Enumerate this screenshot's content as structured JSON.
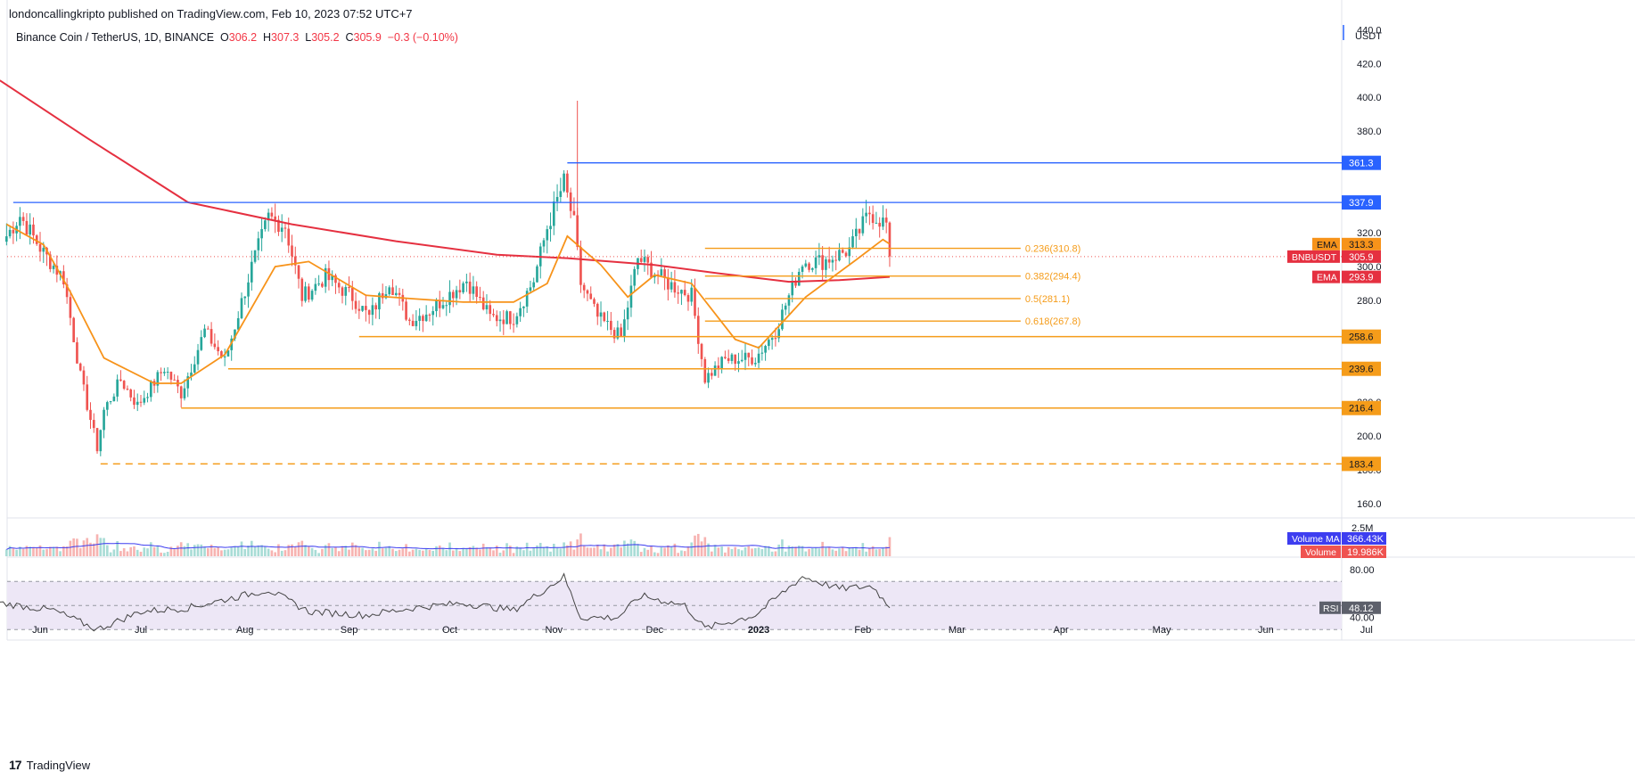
{
  "header": {
    "publish_line": "londoncallingkripto published on TradingView.com, Feb 10, 2023 07:52 UTC+7",
    "symbol": "Binance Coin / TetherUS, 1D, BINANCE",
    "o_label": "O",
    "o_value": "306.2",
    "h_label": "H",
    "h_value": "307.3",
    "l_label": "L",
    "l_value": "305.2",
    "c_label": "C",
    "c_value": "305.9",
    "change": "−0.3 (−0.10%)"
  },
  "footer": {
    "brand": "TradingView",
    "logo_glyph": "17"
  },
  "colors": {
    "up": "#26a69a",
    "down": "#ef5350",
    "ema_short": "#f7931a",
    "ema_long": "#e53040",
    "fib": "#f59c1a",
    "support": "#f59c1a",
    "resistance": "#2962ff",
    "volume_ma": "#3d3df0",
    "rsi": "#444444",
    "rsi_band": "#ede7f6",
    "grid_text": "#131722"
  },
  "chart_data": {
    "type": "candlestick",
    "symbol": "BNBUSDT",
    "currency": "USDT",
    "price_axis": {
      "ylim": [
        152,
        447
      ],
      "ticks": [
        "160.0",
        "180.0",
        "200.0",
        "220.0",
        "240.0",
        "260.0",
        "280.0",
        "300.0",
        "320.0",
        "340.0",
        "360.0",
        "380.0",
        "400.0",
        "420.0",
        "440.0"
      ]
    },
    "time_axis": {
      "labels": [
        "Jun",
        "Jul",
        "Aug",
        "Sep",
        "Oct",
        "Nov",
        "Dec",
        "2023",
        "Feb",
        "Mar",
        "Apr",
        "May",
        "Jun",
        "Jul"
      ]
    },
    "price_series_anchors": [
      {
        "date": "2022-05-22",
        "price": 318
      },
      {
        "date": "2022-05-26",
        "price": 330
      },
      {
        "date": "2022-06-02",
        "price": 308
      },
      {
        "date": "2022-06-08",
        "price": 293
      },
      {
        "date": "2022-06-13",
        "price": 235
      },
      {
        "date": "2022-06-18",
        "price": 193
      },
      {
        "date": "2022-06-20",
        "price": 215
      },
      {
        "date": "2022-06-25",
        "price": 233
      },
      {
        "date": "2022-06-30",
        "price": 218
      },
      {
        "date": "2022-07-08",
        "price": 240
      },
      {
        "date": "2022-07-13",
        "price": 225
      },
      {
        "date": "2022-07-20",
        "price": 262
      },
      {
        "date": "2022-07-26",
        "price": 244
      },
      {
        "date": "2022-08-03",
        "price": 300
      },
      {
        "date": "2022-08-08",
        "price": 329
      },
      {
        "date": "2022-08-13",
        "price": 324
      },
      {
        "date": "2022-08-18",
        "price": 282
      },
      {
        "date": "2022-08-25",
        "price": 294
      },
      {
        "date": "2022-09-02",
        "price": 282
      },
      {
        "date": "2022-09-07",
        "price": 270
      },
      {
        "date": "2022-09-13",
        "price": 292
      },
      {
        "date": "2022-09-19",
        "price": 268
      },
      {
        "date": "2022-09-25",
        "price": 274
      },
      {
        "date": "2022-10-06",
        "price": 292
      },
      {
        "date": "2022-10-13",
        "price": 270
      },
      {
        "date": "2022-10-20",
        "price": 270
      },
      {
        "date": "2022-10-26",
        "price": 292
      },
      {
        "date": "2022-10-30",
        "price": 323
      },
      {
        "date": "2022-11-04",
        "price": 350
      },
      {
        "date": "2022-11-07",
        "price": 325
      },
      {
        "date": "2022-11-09",
        "price": 290
      },
      {
        "date": "2022-11-14",
        "price": 270
      },
      {
        "date": "2022-11-21",
        "price": 258
      },
      {
        "date": "2022-11-26",
        "price": 305
      },
      {
        "date": "2022-12-05",
        "price": 290
      },
      {
        "date": "2022-12-12",
        "price": 283
      },
      {
        "date": "2022-12-16",
        "price": 234
      },
      {
        "date": "2022-12-22",
        "price": 245
      },
      {
        "date": "2022-12-31",
        "price": 246
      },
      {
        "date": "2023-01-06",
        "price": 262
      },
      {
        "date": "2023-01-14",
        "price": 303
      },
      {
        "date": "2023-01-20",
        "price": 303
      },
      {
        "date": "2023-01-28",
        "price": 310
      },
      {
        "date": "2023-02-03",
        "price": 332
      },
      {
        "date": "2023-02-08",
        "price": 325
      },
      {
        "date": "2023-02-09",
        "price": 306
      }
    ],
    "ema_short_anchors": [
      {
        "date": "2022-05-22",
        "value": 325
      },
      {
        "date": "2022-06-02",
        "value": 313
      },
      {
        "date": "2022-06-10",
        "value": 285
      },
      {
        "date": "2022-06-20",
        "value": 246
      },
      {
        "date": "2022-07-05",
        "value": 231
      },
      {
        "date": "2022-07-13",
        "value": 231
      },
      {
        "date": "2022-07-26",
        "value": 248
      },
      {
        "date": "2022-08-10",
        "value": 300
      },
      {
        "date": "2022-08-20",
        "value": 303
      },
      {
        "date": "2022-09-06",
        "value": 283
      },
      {
        "date": "2022-09-20",
        "value": 281
      },
      {
        "date": "2022-10-05",
        "value": 279
      },
      {
        "date": "2022-10-20",
        "value": 279
      },
      {
        "date": "2022-10-30",
        "value": 290
      },
      {
        "date": "2022-11-05",
        "value": 318
      },
      {
        "date": "2022-11-15",
        "value": 301
      },
      {
        "date": "2022-11-23",
        "value": 282
      },
      {
        "date": "2022-12-01",
        "value": 295
      },
      {
        "date": "2022-12-12",
        "value": 290
      },
      {
        "date": "2022-12-25",
        "value": 257
      },
      {
        "date": "2023-01-01",
        "value": 252
      },
      {
        "date": "2023-01-15",
        "value": 282
      },
      {
        "date": "2023-01-30",
        "value": 304
      },
      {
        "date": "2023-02-07",
        "value": 316
      },
      {
        "date": "2023-02-09",
        "value": 313.3
      }
    ],
    "ema_long_anchors": [
      {
        "date": "2022-05-20",
        "value": 410
      },
      {
        "date": "2022-06-15",
        "value": 376
      },
      {
        "date": "2022-07-15",
        "value": 338
      },
      {
        "date": "2022-08-15",
        "value": 325
      },
      {
        "date": "2022-09-15",
        "value": 315
      },
      {
        "date": "2022-10-15",
        "value": 307
      },
      {
        "date": "2022-11-05",
        "value": 305
      },
      {
        "date": "2022-12-01",
        "value": 301
      },
      {
        "date": "2022-12-20",
        "value": 296
      },
      {
        "date": "2023-01-10",
        "value": 291
      },
      {
        "date": "2023-01-25",
        "value": 292
      },
      {
        "date": "2023-02-09",
        "value": 293.9
      }
    ],
    "annotations": {
      "ath_wick": {
        "date": "2022-11-08",
        "high": 398
      },
      "resistance_lines": [
        {
          "value": 361.3,
          "label": "361.3",
          "from": "2022-11-05"
        },
        {
          "value": 337.9,
          "label": "337.9",
          "from": "2022-05-24"
        }
      ],
      "support_lines": [
        {
          "value": 258.6,
          "label": "258.6",
          "from": "2022-09-04"
        },
        {
          "value": 239.6,
          "label": "239.6",
          "from": "2022-07-27"
        },
        {
          "value": 216.4,
          "label": "216.4",
          "from": "2022-07-13"
        },
        {
          "value": 183.4,
          "label": "183.4",
          "from": "2022-06-19",
          "dashed": true
        }
      ],
      "fib_levels": [
        {
          "value": 310.8,
          "label": "0.236(310.8)"
        },
        {
          "value": 294.4,
          "label": "0.382(294.4)"
        },
        {
          "value": 281.1,
          "label": "0.5(281.1)"
        },
        {
          "value": 267.8,
          "label": "0.618(267.8)"
        }
      ],
      "fib_range": {
        "from": "2022-12-16",
        "to": "2023-03-20"
      },
      "price_tags": [
        {
          "name": "EMA",
          "value": "313.3"
        },
        {
          "name": "BNBUSDT",
          "value": "305.9"
        },
        {
          "name": "EMA",
          "value": "293.9"
        }
      ]
    },
    "volume": {
      "tick": "2.5M",
      "volume_ma_label": "Volume MA",
      "volume_ma_value": "366.43K",
      "volume_label": "Volume",
      "volume_value": "19.986K"
    },
    "rsi": {
      "label": "RSI",
      "value": "48.12",
      "ticks": [
        "80.00",
        "40.00"
      ],
      "ylim": [
        22,
        88
      ],
      "upper": 70,
      "lower": 30,
      "anchors": [
        {
          "date": "2022-05-20",
          "v": 52
        },
        {
          "date": "2022-06-05",
          "v": 46
        },
        {
          "date": "2022-06-18",
          "v": 30
        },
        {
          "date": "2022-07-01",
          "v": 45
        },
        {
          "date": "2022-07-15",
          "v": 48
        },
        {
          "date": "2022-08-08",
          "v": 63
        },
        {
          "date": "2022-08-20",
          "v": 45
        },
        {
          "date": "2022-09-06",
          "v": 42
        },
        {
          "date": "2022-09-20",
          "v": 48
        },
        {
          "date": "2022-10-05",
          "v": 52
        },
        {
          "date": "2022-10-20",
          "v": 46
        },
        {
          "date": "2022-11-04",
          "v": 74
        },
        {
          "date": "2022-11-09",
          "v": 40
        },
        {
          "date": "2022-11-20",
          "v": 40
        },
        {
          "date": "2022-11-27",
          "v": 58
        },
        {
          "date": "2022-12-10",
          "v": 50
        },
        {
          "date": "2022-12-16",
          "v": 31
        },
        {
          "date": "2022-12-31",
          "v": 42
        },
        {
          "date": "2023-01-14",
          "v": 74
        },
        {
          "date": "2023-01-25",
          "v": 64
        },
        {
          "date": "2023-02-04",
          "v": 66
        },
        {
          "date": "2023-02-09",
          "v": 48.12
        }
      ]
    }
  }
}
